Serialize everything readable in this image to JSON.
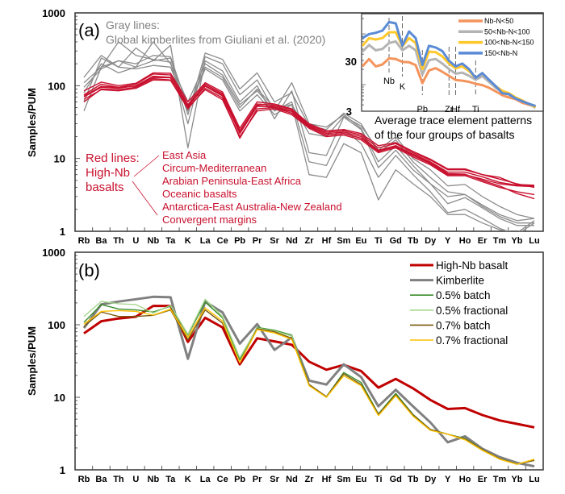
{
  "chart_data": [
    {
      "type": "line",
      "panel_label": "(a)",
      "ylabel": "Samples/PUM",
      "yscale": "log",
      "ylim": [
        1,
        1000
      ],
      "yticks": [
        "1",
        "10",
        "100",
        "1000"
      ],
      "categories": [
        "Rb",
        "Ba",
        "Th",
        "U",
        "Nb",
        "Ta",
        "K",
        "La",
        "Ce",
        "Pb",
        "Pr",
        "Sr",
        "Nd",
        "Zr",
        "Hf",
        "Sm",
        "Eu",
        "Ti",
        "Gd",
        "Tb",
        "Dy",
        "Y",
        "Ho",
        "Er",
        "Tm",
        "Yb",
        "Lu"
      ],
      "annotations": {
        "gray_title": "Gray lines:",
        "gray_source": "Global kimberlites from Giuliani et al. (2020)",
        "red_title": [
          "Red lines:",
          "High-Nb",
          "basalts"
        ],
        "red_groups": [
          "East Asia",
          "Circum-Mediterranean",
          "Arabian Peninsula-East Africa",
          "Oceanic basalts",
          "Antarctica-East Australia-New Zealand",
          "Convergent margins"
        ]
      },
      "colors": {
        "red": "#c8102e",
        "gray": "#8c8c8c"
      },
      "red_series": [
        [
          60,
          90,
          88,
          95,
          125,
          120,
          48,
          92,
          68,
          19,
          48,
          50,
          42,
          27,
          21,
          22,
          19,
          12.5,
          14.5,
          11,
          8.5,
          6,
          6,
          5.2,
          4.5,
          4.2,
          4.1
        ],
        [
          70,
          95,
          92,
          100,
          135,
          130,
          52,
          98,
          72,
          22,
          52,
          52,
          45,
          28,
          22,
          23,
          20,
          13,
          15,
          11.5,
          9,
          6.5,
          6.5,
          5.6,
          4.7,
          4.3,
          4.2
        ],
        [
          75,
          105,
          95,
          105,
          145,
          140,
          55,
          105,
          78,
          24,
          56,
          54,
          47,
          29,
          23,
          24,
          21,
          14,
          16,
          12,
          9.5,
          7,
          7,
          6,
          5.5,
          4.4,
          4.3
        ],
        [
          85,
          112,
          100,
          108,
          150,
          148,
          60,
          110,
          82,
          26,
          60,
          56,
          48,
          30,
          24,
          25,
          22,
          15,
          16.5,
          12.5,
          9.8,
          7.2,
          7.2,
          6,
          5.2,
          4.5,
          4.0
        ],
        [
          65,
          88,
          85,
          92,
          120,
          118,
          50,
          88,
          64,
          20,
          45,
          48,
          40,
          26,
          20,
          21,
          18,
          12,
          14,
          10.5,
          8.2,
          5.8,
          5.8,
          4.8,
          4.0,
          3.5,
          3.2
        ],
        [
          72,
          98,
          95,
          98,
          130,
          128,
          53,
          100,
          75,
          23,
          54,
          50,
          44,
          27,
          21,
          22,
          19,
          12.8,
          15,
          11.2,
          8.8,
          6.2,
          6.1,
          5,
          4.2,
          3.3,
          2.8
        ]
      ],
      "gray_series": [
        [
          130,
          260,
          180,
          330,
          220,
          240,
          40,
          280,
          230,
          90,
          150,
          60,
          80,
          28,
          25,
          42,
          30,
          12,
          18,
          9,
          5.5,
          3.5,
          3.2,
          2.3,
          1.7,
          1.4,
          1.5
        ],
        [
          110,
          180,
          400,
          260,
          230,
          210,
          30,
          250,
          200,
          75,
          120,
          45,
          110,
          30,
          27,
          40,
          26,
          9,
          15,
          8,
          4.5,
          3.0,
          3.2,
          2.2,
          1.6,
          1.3,
          1.3
        ],
        [
          95,
          170,
          220,
          180,
          220,
          360,
          14,
          220,
          160,
          60,
          100,
          35,
          85,
          12,
          11,
          37,
          25,
          7.5,
          13,
          7,
          4.5,
          2.4,
          2.9,
          2.1,
          1.5,
          1.2,
          1.2
        ],
        [
          80,
          200,
          150,
          180,
          400,
          200,
          60,
          200,
          140,
          55,
          85,
          45,
          60,
          9,
          8,
          25,
          16,
          5.5,
          11,
          6,
          3.5,
          1.8,
          2.0,
          1.5,
          1.1,
          0.9,
          1.3
        ],
        [
          60,
          240,
          180,
          170,
          190,
          180,
          45,
          170,
          120,
          45,
          75,
          40,
          55,
          6,
          5.5,
          16,
          12,
          2.7,
          7,
          4.5,
          3.0,
          1.7,
          1.7,
          1.3,
          1.05,
          0.95,
          1.4
        ],
        [
          45,
          180,
          220,
          200,
          260,
          250,
          50,
          180,
          130,
          50,
          90,
          50,
          55,
          22,
          20,
          38,
          28,
          13,
          20,
          10,
          7,
          4.2,
          4.4,
          3.0,
          2.2,
          1.7,
          1.5
        ]
      ],
      "inset": {
        "caption": [
          "Average trace element patterns",
          "of the four groups of basalts"
        ],
        "yscale": "log",
        "ylim": [
          3,
          250
        ],
        "yticks": [
          "3",
          "30"
        ],
        "marked_elements": [
          "Nb",
          "K",
          "Pb",
          "Zr",
          "Hf",
          "Ti"
        ],
        "series": [
          {
            "name": "Nb-N<50",
            "color": "#f4945c",
            "values": [
              22.9,
              31.9,
              22.9,
              25,
              33,
              32,
              28.2,
              27.6,
              24.3,
              10.7,
              19.1,
              21.1,
              17.9,
              14.9,
              12.4,
              12.0,
              11.4,
              10.4,
              9.8,
              8.7,
              7.4,
              6.2,
              5.6,
              5.2,
              4.4,
              4.0,
              3.7
            ]
          },
          {
            "name": "50<Nb-N<100",
            "color": "#b4b4b4",
            "values": [
              44.7,
              60.6,
              47.5,
              50.5,
              66,
              71,
              47.5,
              58.4,
              47.5,
              15.9,
              30.3,
              32,
              26,
              20.3,
              16.5,
              17.3,
              15,
              12.5,
              14.7,
              11.4,
              8.7,
              7.2,
              6.4,
              5.3,
              4.7,
              4.2,
              3.5
            ]
          },
          {
            "name": "100<Nb-N<150",
            "color": "#ffc82c",
            "values": [
              58.4,
              82.6,
              77.5,
              82.6,
              108,
              108,
              57,
              82.6,
              66,
              20.3,
              44.7,
              43.7,
              36,
              26,
              21,
              23,
              18.6,
              13.6,
              16.9,
              12.5,
              9.4,
              7.6,
              6.8,
              5.6,
              4.9,
              4.2,
              3.6
            ]
          },
          {
            "name": "150<Nb-N",
            "color": "#5b8bd6",
            "values": [
              82.6,
              99,
              105,
              116,
              171,
              161,
              58.4,
              112,
              82.6,
              24.4,
              58.4,
              54,
              46,
              29.5,
              23,
              26,
              20.3,
              13.6,
              16.9,
              12.5,
              9.4,
              6.8,
              6.5,
              5.3,
              4.7,
              4.2,
              3.8
            ]
          }
        ]
      }
    },
    {
      "type": "line",
      "panel_label": "(b)",
      "ylabel": "Samples/PUM",
      "yscale": "log",
      "ylim": [
        1,
        1000
      ],
      "yticks": [
        "1",
        "10",
        "100",
        "1000"
      ],
      "categories": [
        "Rb",
        "Ba",
        "Th",
        "U",
        "Nb",
        "Ta",
        "K",
        "La",
        "Ce",
        "Pb",
        "Pr",
        "Sr",
        "Nd",
        "Zr",
        "Hf",
        "Sm",
        "Eu",
        "Ti",
        "Gd",
        "Tb",
        "Dy",
        "Y",
        "Ho",
        "Er",
        "Tm",
        "Yb",
        "Lu"
      ],
      "legend_position": "top-right",
      "series": [
        {
          "name": "High-Nb basalt",
          "color": "#c00000",
          "width": 3,
          "values": [
            76,
            112,
            122,
            129,
            182,
            182,
            58,
            125,
            92,
            28.5,
            65,
            59,
            53,
            31,
            24,
            28,
            23,
            13.6,
            17.9,
            13.3,
            9.2,
            6.9,
            7.1,
            5.7,
            4.8,
            4.3,
            3.85
          ]
        },
        {
          "name": "Kimberlite",
          "color": "#808080",
          "width": 3,
          "values": [
            90,
            191,
            209,
            225,
            243,
            239,
            34,
            209,
            148,
            55,
            102,
            45,
            67,
            17,
            15,
            28.5,
            19,
            7.5,
            12.7,
            7.5,
            4.5,
            2.4,
            2.9,
            1.95,
            1.5,
            1.25,
            1.12
          ]
        },
        {
          "name": "0.5% batch",
          "color": "#3a8c2a",
          "width": 1.4,
          "values": [
            108,
            190,
            165,
            160,
            150,
            180,
            72,
            205,
            125,
            33,
            92,
            84,
            72,
            15,
            10.2,
            22,
            16,
            5.9,
            11.3,
            5.8,
            3.6,
            3.1,
            2.7,
            1.9,
            1.42,
            1.2,
            1.35
          ]
        },
        {
          "name": "0.5% fractional",
          "color": "#a6d78e",
          "width": 1.4,
          "values": [
            130,
            210,
            195,
            190,
            145,
            185,
            74,
            225,
            130,
            35,
            90,
            82,
            70,
            14.5,
            10,
            21,
            15,
            5.7,
            10.7,
            5.6,
            3.5,
            3.1,
            2.6,
            1.85,
            1.4,
            1.2,
            1.38
          ]
        },
        {
          "name": "0.7% batch",
          "color": "#7a5a10",
          "width": 1.4,
          "values": [
            95,
            150,
            130,
            130,
            135,
            160,
            62,
            160,
            105,
            30,
            88,
            80,
            65,
            15,
            10.2,
            21,
            15,
            5.8,
            10.8,
            5.7,
            3.6,
            3.1,
            2.65,
            1.9,
            1.42,
            1.2,
            1.35
          ]
        },
        {
          "name": "0.7% fractional",
          "color": "#ffc000",
          "width": 1.4,
          "values": [
            102,
            153,
            157,
            153,
            136,
            164,
            67,
            171,
            112,
            30,
            86,
            77,
            63,
            14.4,
            10,
            19.8,
            14.4,
            5.6,
            10.5,
            5.5,
            3.5,
            3.1,
            2.6,
            1.86,
            1.4,
            1.19,
            1.4
          ]
        }
      ]
    }
  ]
}
